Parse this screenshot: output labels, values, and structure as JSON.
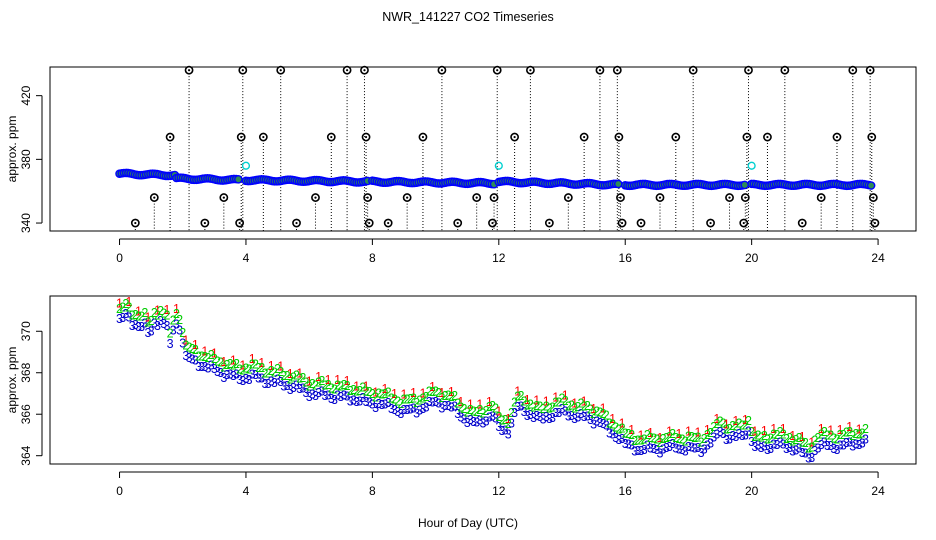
{
  "figure": {
    "title": "NWR_141227  CO2 Timeseries",
    "xlabel": "Hour of Day (UTC)"
  },
  "chart_data": [
    {
      "type": "scatter",
      "panel": "top",
      "ylabel": "approx. ppm",
      "xlim": [
        -2.2,
        25.2
      ],
      "ylim": [
        335,
        438
      ],
      "xticks": [
        0,
        4,
        8,
        12,
        16,
        20,
        24
      ],
      "yticks": [
        340,
        380,
        420
      ],
      "baseline_series": {
        "name": "baseline (blue)",
        "color": "#0000ff",
        "fill": "#2e8b57",
        "segments": [
          {
            "x0": 0.0,
            "x1": 1.8,
            "y0": 371,
            "y1": 370
          },
          {
            "x0": 1.8,
            "x1": 3.8,
            "y0": 368,
            "y1": 367
          },
          {
            "x0": 4.0,
            "x1": 7.9,
            "y0": 367,
            "y1": 366
          },
          {
            "x0": 8.0,
            "x1": 11.9,
            "y0": 366,
            "y1": 365
          },
          {
            "x0": 12.0,
            "x1": 15.8,
            "y0": 366,
            "y1": 364
          },
          {
            "x0": 16.0,
            "x1": 19.8,
            "y0": 364,
            "y1": 364
          },
          {
            "x0": 20.0,
            "x1": 23.8,
            "y0": 364,
            "y1": 364
          }
        ]
      },
      "calibration_points": {
        "name": "calibration (cyan)",
        "color": "#00d0d0",
        "points": [
          [
            4.0,
            376
          ],
          [
            12.0,
            376
          ],
          [
            20.0,
            376
          ]
        ]
      },
      "outliers": {
        "name": "outliers (black)",
        "color": "#000000",
        "points": [
          [
            0.5,
            340
          ],
          [
            1.1,
            356
          ],
          [
            1.6,
            394
          ],
          [
            2.2,
            436
          ],
          [
            2.7,
            340
          ],
          [
            3.3,
            356
          ],
          [
            3.8,
            340
          ],
          [
            3.85,
            394
          ],
          [
            3.9,
            436
          ],
          [
            4.55,
            394
          ],
          [
            5.1,
            436
          ],
          [
            5.6,
            340
          ],
          [
            6.2,
            356
          ],
          [
            6.7,
            394
          ],
          [
            7.2,
            436
          ],
          [
            7.75,
            436
          ],
          [
            7.8,
            394
          ],
          [
            7.85,
            356
          ],
          [
            7.9,
            340
          ],
          [
            8.5,
            340
          ],
          [
            9.1,
            356
          ],
          [
            9.6,
            394
          ],
          [
            10.2,
            436
          ],
          [
            10.7,
            340
          ],
          [
            11.3,
            356
          ],
          [
            11.8,
            340
          ],
          [
            11.85,
            356
          ],
          [
            11.95,
            436
          ],
          [
            12.5,
            394
          ],
          [
            13.0,
            436
          ],
          [
            13.6,
            340
          ],
          [
            14.2,
            356
          ],
          [
            14.7,
            394
          ],
          [
            15.2,
            436
          ],
          [
            15.75,
            436
          ],
          [
            15.8,
            394
          ],
          [
            15.85,
            356
          ],
          [
            15.9,
            340
          ],
          [
            16.5,
            340
          ],
          [
            17.1,
            356
          ],
          [
            17.6,
            394
          ],
          [
            18.15,
            436
          ],
          [
            18.7,
            340
          ],
          [
            19.3,
            356
          ],
          [
            19.75,
            340
          ],
          [
            19.8,
            356
          ],
          [
            19.85,
            394
          ],
          [
            19.9,
            436
          ],
          [
            20.5,
            394
          ],
          [
            21.05,
            436
          ],
          [
            21.6,
            340
          ],
          [
            22.2,
            356
          ],
          [
            22.7,
            394
          ],
          [
            23.2,
            436
          ],
          [
            23.75,
            436
          ],
          [
            23.8,
            394
          ],
          [
            23.85,
            356
          ],
          [
            23.9,
            340
          ]
        ]
      }
    },
    {
      "type": "scatter",
      "panel": "bottom",
      "ylabel": "approx. ppm",
      "xlim": [
        -2.2,
        25.2
      ],
      "ylim": [
        363.6,
        371.7
      ],
      "xticks": [
        0,
        4,
        8,
        12,
        16,
        20,
        24
      ],
      "yticks": [
        364,
        366,
        368,
        370
      ],
      "marker_labels": [
        "1",
        "2",
        "3"
      ],
      "series": [
        {
          "name": "1",
          "color": "#ff0000",
          "offset": 0.5
        },
        {
          "name": "2",
          "color": "#00cc00",
          "offset": 0.25
        },
        {
          "name": "3",
          "color": "#0000cc",
          "offset": -0.25
        }
      ],
      "anchors": [
        [
          0.0,
          370.8
        ],
        [
          0.2,
          371.0
        ],
        [
          0.4,
          370.7
        ],
        [
          0.6,
          370.6
        ],
        [
          0.8,
          370.5
        ],
        [
          0.95,
          370.0
        ],
        [
          1.1,
          370.7
        ],
        [
          1.3,
          370.8
        ],
        [
          1.5,
          370.5
        ],
        [
          1.6,
          369.5
        ],
        [
          1.75,
          370.8
        ],
        [
          1.95,
          370.3
        ],
        [
          2.1,
          369.0
        ],
        [
          2.4,
          368.8
        ],
        [
          2.7,
          368.6
        ],
        [
          3.0,
          368.4
        ],
        [
          3.4,
          368.2
        ],
        [
          3.8,
          368.0
        ],
        [
          4.2,
          368.1
        ],
        [
          4.6,
          367.9
        ],
        [
          5.0,
          367.8
        ],
        [
          5.5,
          367.6
        ],
        [
          6.0,
          367.3
        ],
        [
          6.5,
          367.2
        ],
        [
          7.0,
          367.1
        ],
        [
          7.5,
          367.0
        ],
        [
          7.9,
          366.8
        ],
        [
          8.2,
          366.8
        ],
        [
          8.6,
          366.6
        ],
        [
          9.0,
          366.4
        ],
        [
          9.4,
          366.5
        ],
        [
          9.8,
          366.7
        ],
        [
          10.0,
          366.9
        ],
        [
          10.3,
          366.7
        ],
        [
          10.6,
          366.5
        ],
        [
          10.9,
          366.1
        ],
        [
          11.2,
          365.8
        ],
        [
          11.5,
          366.0
        ],
        [
          11.8,
          366.2
        ],
        [
          12.0,
          365.6
        ],
        [
          12.3,
          365.5
        ],
        [
          12.6,
          366.6
        ],
        [
          13.0,
          366.3
        ],
        [
          13.3,
          366.0
        ],
        [
          13.6,
          366.2
        ],
        [
          14.0,
          366.4
        ],
        [
          14.4,
          366.2
        ],
        [
          14.8,
          366.1
        ],
        [
          15.2,
          365.9
        ],
        [
          15.5,
          365.4
        ],
        [
          15.8,
          365.2
        ],
        [
          16.0,
          364.8
        ],
        [
          16.4,
          364.6
        ],
        [
          16.8,
          364.6
        ],
        [
          17.2,
          364.6
        ],
        [
          17.6,
          364.7
        ],
        [
          18.0,
          364.6
        ],
        [
          18.4,
          364.6
        ],
        [
          18.8,
          365.0
        ],
        [
          19.0,
          365.5
        ],
        [
          19.3,
          365.1
        ],
        [
          19.6,
          365.2
        ],
        [
          19.9,
          365.5
        ],
        [
          20.1,
          364.6
        ],
        [
          20.4,
          364.7
        ],
        [
          20.8,
          364.8
        ],
        [
          21.2,
          364.7
        ],
        [
          21.5,
          364.5
        ],
        [
          21.8,
          364.2
        ],
        [
          22.1,
          364.7
        ],
        [
          22.4,
          364.8
        ],
        [
          22.8,
          364.7
        ],
        [
          23.2,
          364.9
        ],
        [
          23.6,
          364.9
        ]
      ]
    }
  ]
}
